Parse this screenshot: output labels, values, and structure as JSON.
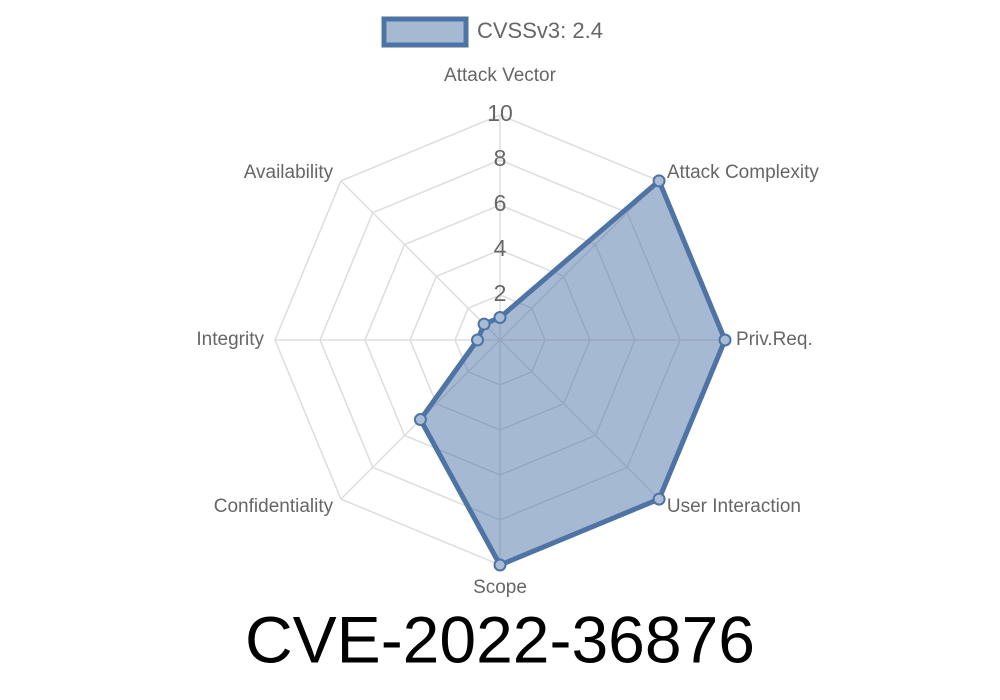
{
  "chart_data": {
    "type": "radar",
    "title": "CVE-2022-36876",
    "categories": [
      "Attack Vector",
      "Attack Complexity",
      "Priv.Req.",
      "User Interaction",
      "Scope",
      "Confidentiality",
      "Integrity",
      "Availability"
    ],
    "series": [
      {
        "name": "CVSSv3: 2.4",
        "color": "#4e73a5",
        "values": [
          1,
          10,
          10,
          10,
          10,
          5,
          1,
          1
        ]
      }
    ],
    "ylim": [
      0,
      10
    ],
    "yticks": [
      2,
      4,
      6,
      8,
      10
    ],
    "grid": true,
    "legend": "top"
  }
}
